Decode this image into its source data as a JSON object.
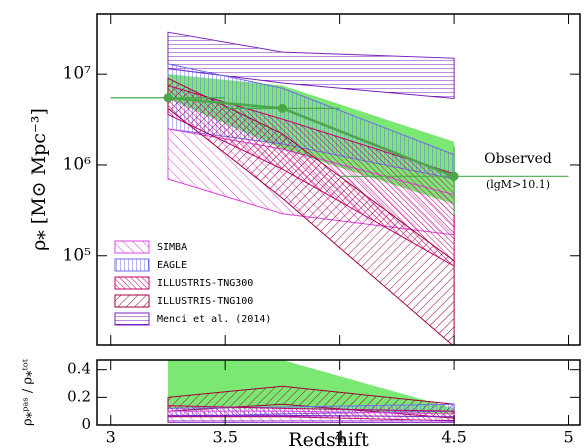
{
  "chart_data": [
    {
      "type": "band",
      "log_y": true,
      "legend": "lower left",
      "ylabel": "ρ⁎ [M⊙ Mpc⁻³]",
      "xlim": [
        2.94,
        5.05
      ],
      "ylim": [
        10400,
        46000000
      ],
      "yticks": [
        {
          "value": 100000,
          "label": "10⁵"
        },
        {
          "value": 1000000,
          "label": "10⁶"
        },
        {
          "value": 10000000,
          "label": "10⁷"
        }
      ],
      "x": [
        3.25,
        3.75,
        4.5
      ],
      "series": [
        {
          "name": "Observed",
          "color": "#7be874",
          "hatch": "solid",
          "upper": [
            10000000,
            7500000,
            1800000
          ],
          "lower": [
            5400000,
            1500000,
            370000
          ]
        },
        {
          "name": "Menci et al. (2014)",
          "color": "#7a1fc0",
          "hatch": "|",
          "upper": [
            29000000,
            17500000,
            15000000
          ],
          "lower": [
            11500000,
            8000000,
            5400000
          ]
        },
        {
          "name": "EAGLE",
          "color": "#6f6fe8",
          "hatch": "-",
          "upper": [
            13000000,
            7000000,
            1300000
          ],
          "lower": [
            2500000,
            1700000,
            700000
          ]
        },
        {
          "name": "SIMBA",
          "color": "#e040e0",
          "hatch": "\\",
          "upper": [
            2500000,
            1500000,
            470000
          ],
          "lower": [
            700000,
            290000,
            170000
          ]
        },
        {
          "name": "ILLUSTRIS-TNG300",
          "color": "#c0006a",
          "hatch": "\\\\",
          "upper": [
            7500000,
            3200000,
            800000
          ],
          "lower": [
            3600000,
            900000,
            77000
          ]
        },
        {
          "name": "ILLUSTRIS-TNG100",
          "color": "#a0003c",
          "hatch": "/",
          "upper": [
            9000000,
            2200000,
            88000
          ],
          "lower": [
            4200000,
            430000,
            10000
          ]
        }
      ],
      "points": {
        "color": "#4aa84a",
        "x": [
          3.25,
          3.75,
          4.5
        ],
        "values": [
          5500000,
          4200000,
          750000
        ],
        "x_low": [
          3.0,
          3.5,
          4.0
        ],
        "x_high": [
          3.5,
          4.0,
          5.0
        ],
        "y_low": [
          5500000,
          4200000,
          280000
        ],
        "y_high": [
          5500000,
          4200000,
          1600000
        ]
      },
      "annotations": [
        "Observed",
        "(lgM>10.1)"
      ]
    },
    {
      "type": "band",
      "ylabel": "ρ⁎ᵖᵃˢ / ρ⁎ᵗᵒᵗ",
      "xlabel": "Redshift",
      "xlim": [
        2.94,
        5.05
      ],
      "ylim": [
        0,
        0.47
      ],
      "xticks": [
        3,
        3.5,
        4,
        4.5,
        5
      ],
      "yticks": [
        0,
        0.2,
        0.4
      ],
      "x": [
        3.25,
        3.75,
        4.5
      ],
      "series": [
        {
          "color": "#7be874",
          "hatch": "solid",
          "upper": [
            0.47,
            0.47,
            0.12
          ],
          "lower": [
            0.12,
            0.12,
            0.08
          ]
        },
        {
          "color": "#a0003c",
          "hatch": "/",
          "upper": [
            0.2,
            0.28,
            0.15
          ],
          "lower": [
            0.1,
            0.15,
            0.05
          ]
        },
        {
          "color": "#6f6fe8",
          "hatch": "-",
          "upper": [
            0.12,
            0.13,
            0.15
          ],
          "lower": [
            0.06,
            0.08,
            0.1
          ]
        },
        {
          "color": "#c0006a",
          "hatch": "\\\\",
          "upper": [
            0.14,
            0.12,
            0.1
          ],
          "lower": [
            0.06,
            0.06,
            0.03
          ]
        },
        {
          "color": "#e040e0",
          "hatch": "\\",
          "upper": [
            0.1,
            0.1,
            0.08
          ],
          "lower": [
            0.02,
            0.02,
            0.02
          ]
        },
        {
          "color": "#7a1fc0",
          "hatch": "|",
          "upper": [
            0.07,
            0.07,
            0.06
          ],
          "lower": [
            0.02,
            0.02,
            0.02
          ]
        }
      ]
    }
  ]
}
